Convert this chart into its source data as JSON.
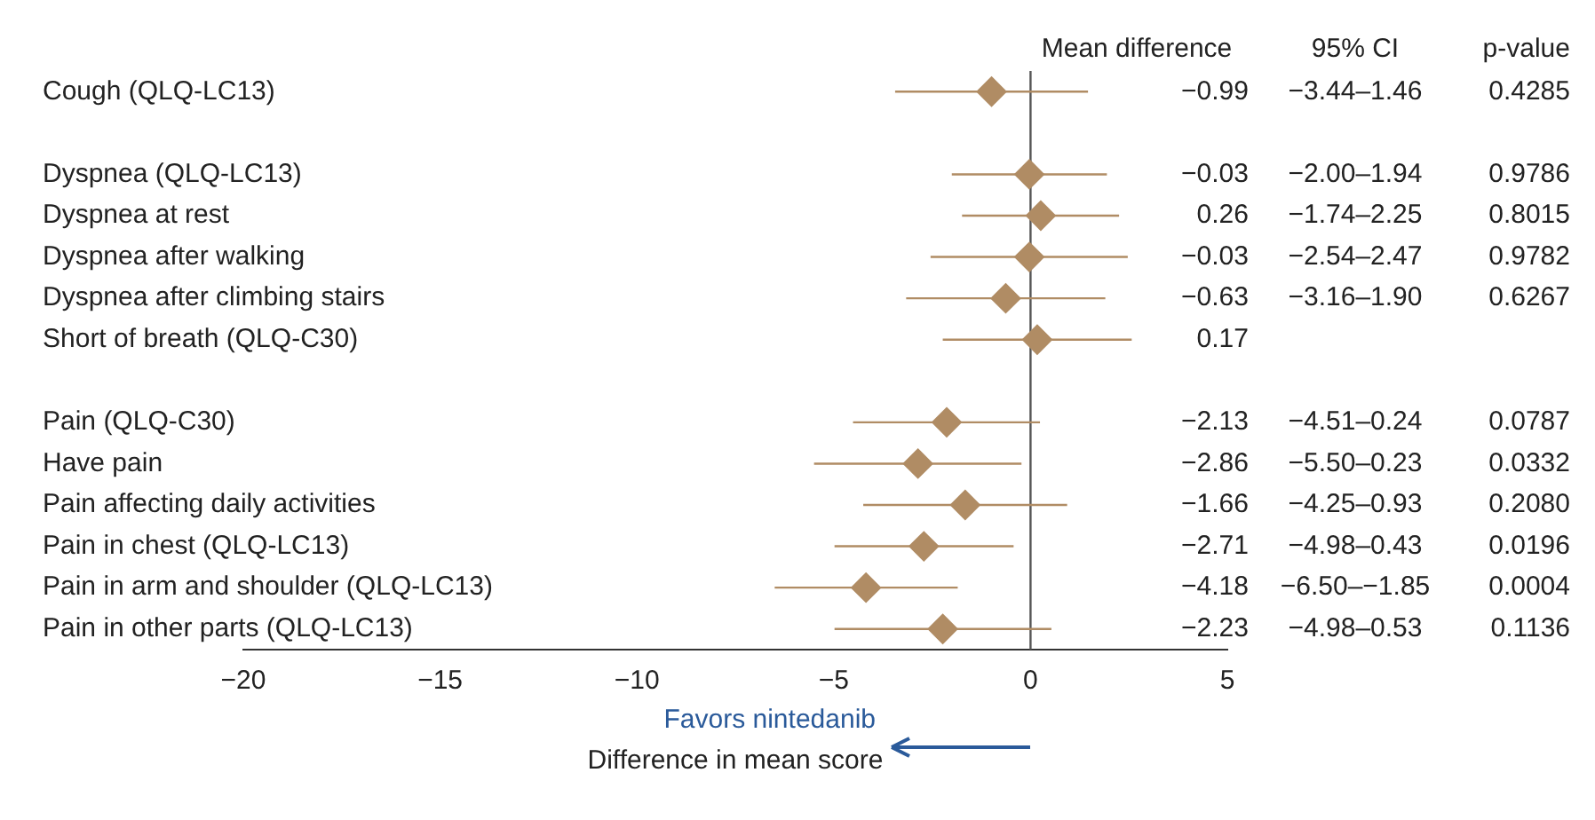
{
  "chart_data": {
    "type": "scatter",
    "orientation": "horizontal",
    "xlabel": "Difference in mean score",
    "categories": [
      "Cough (QLQ-LC13)",
      null,
      "Dyspnea (QLQ-LC13)",
      "Dyspnea at rest",
      "Dyspnea after walking",
      "Dyspnea after climbing stairs",
      "Short of breath (QLQ-C30)",
      null,
      "Pain (QLQ-C30)",
      "Have pain",
      "Pain affecting daily activities",
      "Pain in chest (QLQ-LC13)",
      "Pain in arm and shoulder (QLQ-LC13)",
      "Pain in other parts (QLQ-LC13)"
    ],
    "values": [
      -0.99,
      null,
      -0.03,
      0.26,
      -0.03,
      -0.63,
      0.17,
      null,
      -2.13,
      -2.86,
      -1.66,
      -2.71,
      -4.18,
      -2.23
    ],
    "errors": [
      [
        -3.44,
        1.46
      ],
      null,
      [
        -2.0,
        1.94
      ],
      [
        -1.74,
        2.25
      ],
      [
        -2.54,
        2.47
      ],
      [
        -3.16,
        1.9
      ],
      2.4,
      null,
      [
        -4.51,
        0.24
      ],
      [
        -5.5,
        -0.23
      ],
      [
        -4.25,
        0.93
      ],
      [
        -4.98,
        -0.43
      ],
      [
        -6.5,
        -1.85
      ],
      [
        -4.98,
        0.53
      ]
    ],
    "color": "#b08c64",
    "marker": "diamond",
    "xlim": [
      -20,
      5
    ],
    "xticks": [
      {
        "value": -20,
        "label": "−20"
      },
      {
        "value": -15,
        "label": "−15"
      },
      {
        "value": -10,
        "label": "−10"
      },
      {
        "value": -5,
        "label": "−5"
      },
      0,
      5
    ],
    "ref_lines": [
      {
        "axis": "x",
        "value": 0,
        "color": "#555555"
      }
    ],
    "legend": false,
    "grid": false,
    "annotations": [
      "Mean difference",
      "95% CI",
      "p-value",
      "Favors nintedanib",
      "−0.99",
      "−3.44–1.46",
      "0.4285",
      "−0.03",
      "−2.00–1.94",
      "0.9786",
      "0.26",
      "−1.74–2.25",
      "0.8015",
      "−0.03",
      "−2.54–2.47",
      "0.9782",
      "−0.63",
      "−3.16–1.90",
      "0.6267",
      "0.17",
      "−2.13",
      "−4.51–0.24",
      "0.0787",
      "−2.86",
      "−5.50–0.23",
      "0.0332",
      "−1.66",
      "−4.25–0.93",
      "0.2080",
      "−2.71",
      "−4.98–0.43",
      "0.0196",
      "−4.18",
      "−6.50–−1.85",
      "0.0004",
      "−2.23",
      "−4.98–0.53",
      "0.1136"
    ]
  }
}
